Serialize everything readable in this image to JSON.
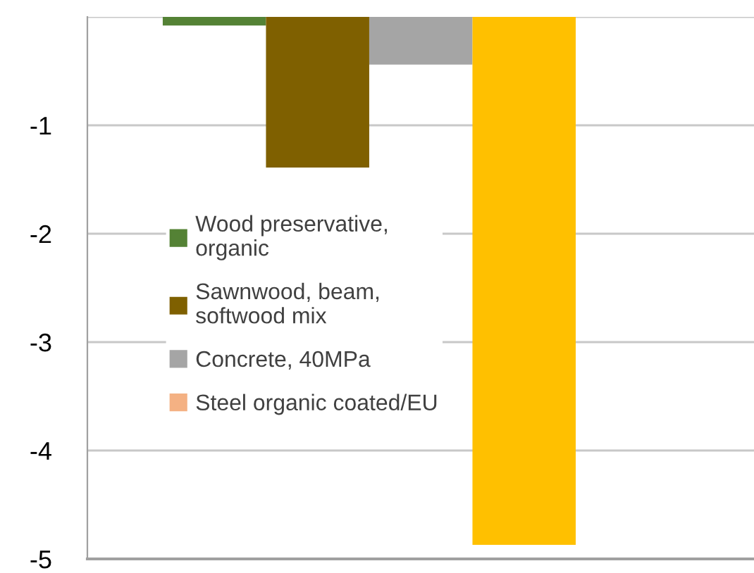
{
  "chart_data": {
    "type": "bar",
    "categories": [
      null
    ],
    "series": [
      {
        "name": "Wood preservative, organic",
        "color": "#548235",
        "values": [
          -0.08
        ]
      },
      {
        "name": "Sawnwood, beam, softwood mix",
        "color": "#7f6000",
        "values": [
          -1.39
        ]
      },
      {
        "name": "Concrete, 40MPa",
        "color": "#a5a5a5",
        "values": [
          -0.44
        ]
      },
      {
        "color": "#ffc000",
        "values": [
          -4.87
        ]
      },
      {
        "name": "Steel organic coated/EU",
        "color": "#f4b183",
        "values": [
          null
        ]
      }
    ],
    "ylim": [
      -5,
      0
    ],
    "yticks": [
      {
        "value": 0,
        "label": null
      },
      -1,
      -2,
      -3,
      -4,
      -5
    ],
    "grid": "y",
    "legend": "left"
  }
}
